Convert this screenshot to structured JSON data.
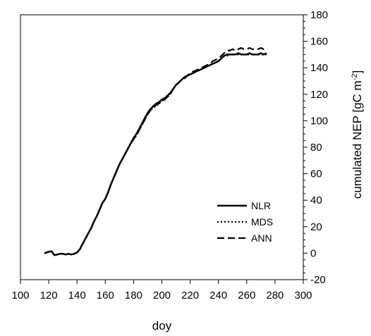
{
  "chart_data": {
    "type": "line",
    "xlabel": "doy",
    "ylabel": "cumulated NEP [gC m",
    "ylabel_sup": "-2",
    "ylabel_end": "]",
    "xlim": [
      100,
      300
    ],
    "ylim": [
      -20,
      180
    ],
    "xticks": [
      100,
      120,
      140,
      160,
      180,
      200,
      220,
      240,
      260,
      280,
      300
    ],
    "yticks": [
      -20,
      0,
      20,
      40,
      60,
      80,
      100,
      120,
      140,
      160,
      180
    ],
    "grid": false,
    "legend_position": "lower-right",
    "series": [
      {
        "name": "NLR",
        "style": "solid",
        "x": [
          117,
          120,
          122,
          124,
          126,
          128,
          130,
          132,
          134,
          136,
          138,
          140,
          142,
          144,
          146,
          148,
          150,
          152,
          154,
          156,
          158,
          160,
          162,
          164,
          166,
          168,
          170,
          172,
          174,
          176,
          178,
          180,
          182,
          184,
          186,
          188,
          190,
          192,
          194,
          196,
          198,
          200,
          202,
          204,
          206,
          208,
          210,
          212,
          214,
          216,
          218,
          220,
          222,
          224,
          226,
          228,
          230,
          232,
          234,
          236,
          238,
          240,
          242,
          244,
          246,
          248,
          250,
          252,
          254,
          256,
          258,
          260,
          262,
          264,
          266,
          268,
          270,
          272,
          274
        ],
        "y": [
          0,
          1,
          1.5,
          -1.5,
          -1,
          -0.5,
          -0.5,
          -1,
          -0.5,
          -1,
          -0.5,
          0.5,
          3,
          7,
          11,
          15,
          19,
          24,
          28,
          33,
          38,
          41,
          46,
          52,
          57,
          62,
          67,
          71,
          75,
          79,
          83,
          87,
          90,
          94,
          98,
          102,
          106,
          109,
          111,
          113,
          114,
          116,
          117,
          119,
          121,
          124,
          127,
          129,
          131,
          133,
          134,
          135,
          136,
          137,
          138,
          139,
          140,
          141,
          142,
          143,
          144,
          145,
          147,
          149,
          150,
          150,
          150,
          150,
          151,
          150,
          150,
          150,
          151,
          150,
          150,
          150,
          151,
          150,
          151
        ]
      },
      {
        "name": "MDS",
        "style": "dotted",
        "x": [
          117,
          120,
          122,
          124,
          126,
          128,
          130,
          132,
          134,
          136,
          138,
          140,
          142,
          144,
          146,
          148,
          150,
          152,
          154,
          156,
          158,
          160,
          162,
          164,
          166,
          168,
          170,
          172,
          174,
          176,
          178,
          180,
          182,
          184,
          186,
          188,
          190,
          192,
          194,
          196,
          198,
          200,
          202,
          204,
          206,
          208,
          210,
          212,
          214,
          216,
          218,
          220,
          222,
          224,
          226,
          228,
          230,
          232,
          234,
          236,
          238,
          240,
          242,
          244,
          246,
          248,
          250,
          252,
          254,
          256,
          258,
          260,
          262,
          264,
          266,
          268,
          270,
          272,
          274
        ],
        "y": [
          0,
          1,
          1.5,
          -1.5,
          -1,
          -0.5,
          -0.5,
          -1,
          -0.5,
          -1,
          -0.5,
          0.5,
          3,
          7,
          11,
          15,
          19,
          24,
          28,
          33,
          38,
          41,
          46,
          52,
          57,
          62,
          67,
          71,
          75,
          79,
          83,
          86,
          89,
          93,
          97,
          101,
          105,
          108,
          110,
          111,
          113,
          115,
          116,
          118,
          120,
          124,
          127,
          129,
          131,
          132,
          134,
          135,
          136,
          137,
          138,
          139,
          140,
          141,
          142,
          143,
          144,
          145,
          147,
          149,
          149,
          150,
          150,
          150,
          150,
          150,
          150,
          150,
          150,
          150,
          150,
          150,
          150,
          150,
          150
        ]
      },
      {
        "name": "ANN",
        "style": "dashed",
        "x": [
          117,
          120,
          122,
          124,
          126,
          128,
          130,
          132,
          134,
          136,
          138,
          140,
          142,
          144,
          146,
          148,
          150,
          152,
          154,
          156,
          158,
          160,
          162,
          164,
          166,
          168,
          170,
          172,
          174,
          176,
          178,
          180,
          182,
          184,
          186,
          188,
          190,
          192,
          194,
          196,
          198,
          200,
          202,
          204,
          206,
          208,
          210,
          212,
          214,
          216,
          218,
          220,
          222,
          224,
          226,
          228,
          230,
          232,
          234,
          236,
          238,
          240,
          242,
          244,
          246,
          248,
          250,
          252,
          254,
          256,
          258,
          260,
          262,
          264,
          266,
          268,
          270,
          272,
          274
        ],
        "y": [
          0,
          1,
          1.5,
          -1.5,
          -1,
          -0.5,
          -0.5,
          -1,
          -0.5,
          -1,
          -0.5,
          0.5,
          3,
          7,
          11,
          15,
          19,
          24,
          28,
          33,
          38,
          41,
          46,
          52,
          57,
          62,
          67,
          71,
          75,
          79,
          83,
          86,
          89,
          93,
          97,
          101,
          105,
          108,
          110,
          112,
          113,
          115,
          116,
          118,
          120,
          124,
          127,
          129,
          131,
          132,
          134,
          136,
          137,
          138,
          139,
          140,
          141,
          142,
          143,
          145,
          146,
          147,
          149,
          151,
          153,
          153,
          154,
          153,
          154,
          155,
          154,
          154,
          155,
          154,
          154,
          154,
          155,
          154,
          155
        ]
      }
    ]
  }
}
